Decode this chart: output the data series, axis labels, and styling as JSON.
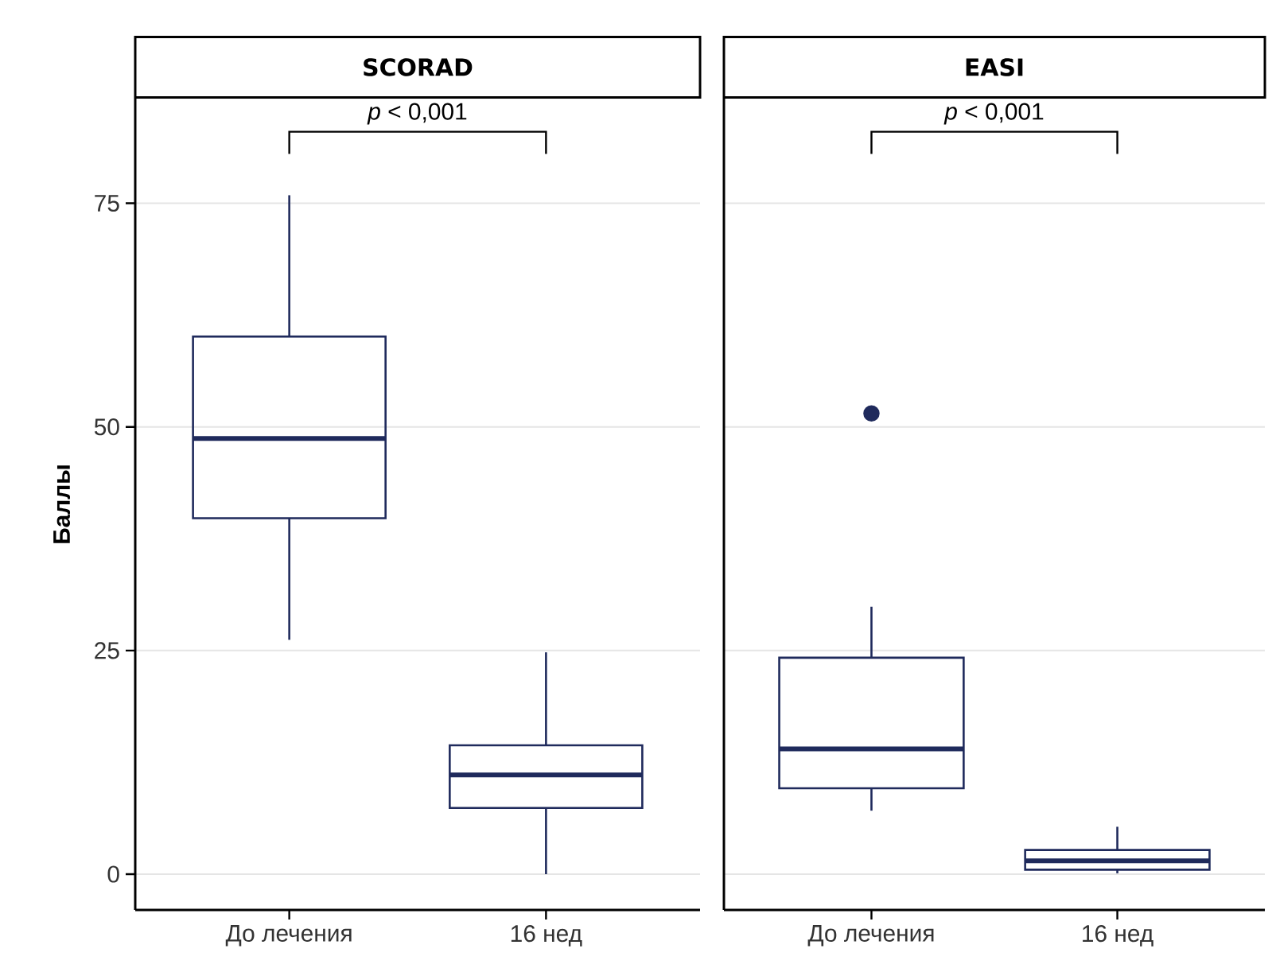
{
  "chart_data": [
    {
      "type": "box",
      "title": "SCORAD",
      "ylabel": "Баллы",
      "categories": [
        "До лечения",
        "16 нед"
      ],
      "color": "#1f2a5c",
      "boxes": [
        {
          "low": 26.2,
          "q1": 39.8,
          "median": 48.7,
          "q3": 60.1,
          "high": 75.9
        },
        {
          "low": 0,
          "q1": 7.4,
          "median": 11.1,
          "q3": 14.4,
          "high": 24.8
        }
      ],
      "ylim": [
        -4,
        86.7
      ],
      "yticks": [
        0,
        25,
        50,
        75
      ],
      "grid": "y",
      "annotations": [
        "*p* < 0,001"
      ]
    },
    {
      "type": "box",
      "title": "EASI",
      "categories": [
        "До лечения",
        "16 нед"
      ],
      "color": "#1f2a5c",
      "boxes": [
        {
          "low": 7.1,
          "q1": 9.6,
          "median": 14.0,
          "q3": 24.2,
          "high": 29.9,
          "outliers": [
            51.5
          ]
        },
        {
          "low": 0.1,
          "q1": 0.5,
          "median": 1.5,
          "q3": 2.7,
          "high": 5.3
        }
      ],
      "ylim": [
        -4,
        86.7
      ],
      "yticks": [
        0,
        25,
        50,
        75
      ],
      "grid": "y",
      "tick_labels": "x",
      "annotations": [
        "*p* < 0,001"
      ]
    }
  ]
}
